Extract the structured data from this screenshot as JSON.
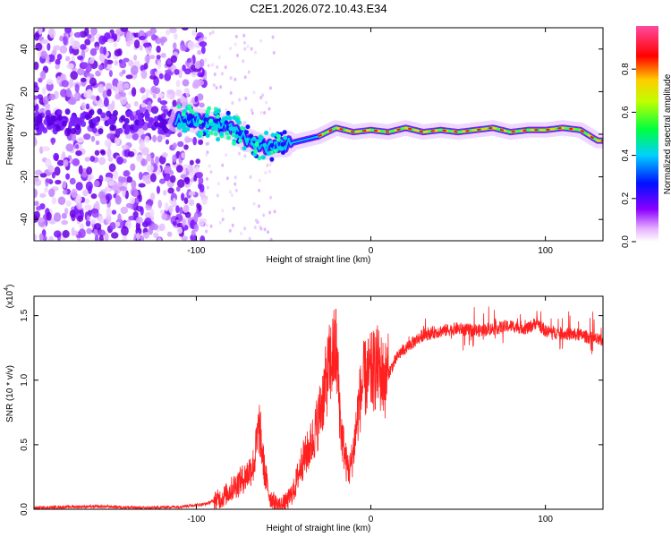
{
  "title": "C2E1.2026.072.10.43.E34",
  "chart_data": [
    {
      "type": "heatmap",
      "name": "spectrogram",
      "xlabel": "Height of straight line (km)",
      "ylabel": "Frequency (Hz)",
      "xlim": [
        -193,
        133
      ],
      "ylim": [
        -50,
        50
      ],
      "xticks": [
        -100,
        0,
        100
      ],
      "yticks": [
        -40,
        -20,
        0,
        20,
        40
      ],
      "colorbar": {
        "label": "Normalized spectral amplitude",
        "range": [
          0,
          1
        ],
        "ticks": [
          "0.0",
          "0.2",
          "0.4",
          "0.6",
          "0.8"
        ],
        "tick_values": [
          0.0,
          0.2,
          0.4,
          0.6,
          0.8
        ],
        "colors": [
          "#ffffff",
          "#d070ff",
          "#6a00ff",
          "#0000ff",
          "#00d0ff",
          "#00ff40",
          "#c0ff00",
          "#ffcc00",
          "#ff0000",
          "#ff3399"
        ]
      },
      "ridge": {
        "description": "peak frequency vs height",
        "x": [
          -110,
          -95,
          -80,
          -70,
          -60,
          -50,
          -45,
          -40,
          -30,
          -20,
          -10,
          0,
          10,
          20,
          30,
          40,
          50,
          60,
          70,
          80,
          90,
          100,
          110,
          120,
          130
        ],
        "y": [
          7,
          6,
          3,
          -3,
          -6,
          -5,
          -4,
          -3,
          -1,
          3,
          1,
          2,
          1,
          3,
          1,
          2,
          1,
          2,
          3,
          1,
          2,
          2,
          3,
          2,
          -3
        ]
      }
    },
    {
      "type": "line",
      "name": "snr",
      "xlabel": "Height of straight line (km)",
      "ylabel": "SNR (10 * v/v)",
      "scale_label": "(x10",
      "scale_exp": "4",
      "xlim": [
        -193,
        133
      ],
      "ylim": [
        0,
        1.65
      ],
      "xticks": [
        -100,
        0,
        100
      ],
      "yticks": [
        "0.0",
        "0.5",
        "1.0",
        "1.5"
      ],
      "ytick_values": [
        0.0,
        0.5,
        1.0,
        1.5
      ],
      "color": "#ff2020",
      "x": [
        -193,
        -170,
        -150,
        -130,
        -110,
        -95,
        -85,
        -78,
        -72,
        -67,
        -64,
        -61,
        -58,
        -55,
        -52,
        -48,
        -44,
        -40,
        -36,
        -33,
        -30,
        -27,
        -24,
        -20,
        -17,
        -14,
        -12,
        -10,
        -7,
        -4,
        0,
        4,
        8,
        12,
        16,
        20,
        25,
        30,
        40,
        50,
        60,
        70,
        80,
        90,
        95,
        100,
        110,
        120,
        133
      ],
      "values": [
        0.01,
        0.02,
        0.02,
        0.01,
        0.02,
        0.04,
        0.09,
        0.18,
        0.25,
        0.35,
        0.65,
        0.3,
        0.1,
        0.05,
        0.03,
        0.06,
        0.15,
        0.35,
        0.45,
        0.55,
        0.7,
        0.9,
        1.1,
        1.25,
        0.6,
        0.35,
        0.3,
        0.45,
        0.8,
        1.0,
        1.05,
        1.1,
        1.0,
        1.1,
        1.2,
        1.25,
        1.3,
        1.35,
        1.38,
        1.4,
        1.38,
        1.4,
        1.42,
        1.4,
        1.45,
        1.38,
        1.36,
        1.35,
        1.3
      ]
    }
  ]
}
